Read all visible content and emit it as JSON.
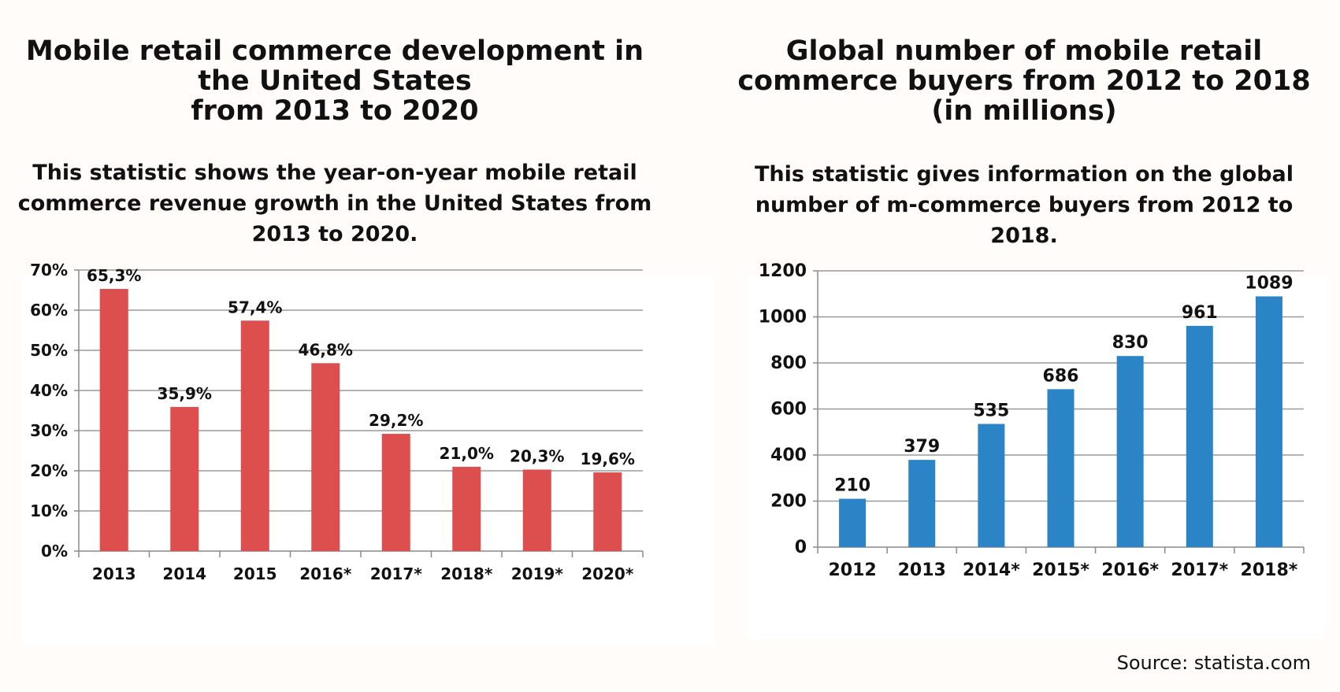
{
  "left": {
    "title": "Mobile retail commerce development in\nthe United States\nfrom 2013 to 2020",
    "subtitle": "This statistic shows the year-on-year mobile retail commerce revenue growth in the United States from 2013 to 2020."
  },
  "right": {
    "title": "Global number of mobile retail\ncommerce buyers from 2012 to 2018\n(in millions)",
    "subtitle": "This statistic gives information on the global number of m-commerce buyers from 2012 to 2018."
  },
  "source": "Source: statista.com",
  "chart_data": [
    {
      "type": "bar",
      "title": "Mobile retail commerce development in the United States from 2013 to 2020",
      "categories": [
        "2013",
        "2014",
        "2015",
        "2016*",
        "2017*",
        "2018*",
        "2019*",
        "2020*"
      ],
      "values": [
        65.3,
        35.9,
        57.4,
        46.8,
        29.2,
        21.0,
        20.3,
        19.6
      ],
      "data_labels": [
        "65,3%",
        "35,9%",
        "57,4%",
        "46,8%",
        "29,2%",
        "21,0%",
        "20,3%",
        "19,6%"
      ],
      "ylim": [
        0,
        70
      ],
      "yticks": [
        0,
        10,
        20,
        30,
        40,
        50,
        60,
        70
      ],
      "ytick_labels": [
        "0%",
        "10%",
        "20%",
        "30%",
        "40%",
        "50%",
        "60%",
        "70%"
      ],
      "grid": true,
      "bar_color": "#dd4f4f"
    },
    {
      "type": "bar",
      "title": "Global number of mobile retail commerce buyers from 2012 to 2018 (in millions)",
      "categories": [
        "2012",
        "2013",
        "2014*",
        "2015*",
        "2016*",
        "2017*",
        "2018*"
      ],
      "values": [
        210,
        379,
        535,
        686,
        830,
        961,
        1089
      ],
      "data_labels": [
        "210",
        "379",
        "535",
        "686",
        "830",
        "961",
        "1089"
      ],
      "ylim": [
        0,
        1200
      ],
      "yticks": [
        0,
        200,
        400,
        600,
        800,
        1000,
        1200
      ],
      "ytick_labels": [
        "0",
        "200",
        "400",
        "600",
        "800",
        "1000",
        "1200"
      ],
      "grid": true,
      "bar_color": "#2a84c6"
    }
  ]
}
